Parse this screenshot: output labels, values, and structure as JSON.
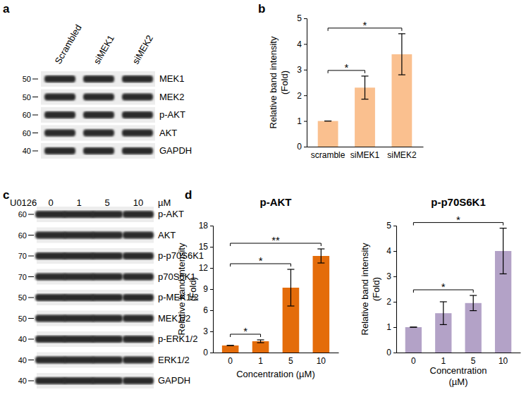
{
  "panels": [
    "a",
    "b",
    "c",
    "d"
  ],
  "blots": [
    {
      "lanes": [
        "Scrambled",
        "siMEK1",
        "siMEK2"
      ],
      "rows": [
        {
          "label": "MEK1",
          "marker": 50
        },
        {
          "label": "MEK2",
          "marker": 50
        },
        {
          "label": "p-AKT",
          "marker": 60
        },
        {
          "label": "AKT",
          "marker": 60
        },
        {
          "label": "GAPDH",
          "marker": 40
        }
      ]
    },
    {
      "treatment": "U0126",
      "lanes": [
        "0",
        "1",
        "5",
        "10"
      ],
      "unit": "µM",
      "rows": [
        {
          "label": "p-AKT",
          "marker": 60
        },
        {
          "label": "AKT",
          "marker": 60
        },
        {
          "label": "p-p70S6K1",
          "marker": 70
        },
        {
          "label": "p70S6K1",
          "marker": 70
        },
        {
          "label": "p-MEK1/2",
          "marker": 50
        },
        {
          "label": "MEK1/2",
          "marker": 50
        },
        {
          "label": "p-ERK1/2",
          "marker": 40
        },
        {
          "label": "ERK1/2",
          "marker": 40
        },
        {
          "label": "GAPDH",
          "marker": 40
        }
      ]
    }
  ],
  "chart_data": [
    {
      "type": "bar",
      "categories": [
        "scramble",
        "siMEK1",
        "siMEK2"
      ],
      "values": [
        1,
        2.3,
        3.6
      ],
      "errors": [
        0,
        0.45,
        0.8
      ],
      "color": "#fac08f",
      "ylim": [
        0,
        5
      ],
      "yticks": [
        0,
        1,
        2,
        3,
        4,
        5
      ],
      "y_label": [
        "Relative band intensity",
        "(Fold)"
      ],
      "significance": [
        {
          "from": 0,
          "to": 1,
          "label": "*"
        },
        {
          "from": 0,
          "to": 2,
          "label": "*"
        }
      ]
    },
    {
      "type": "bar",
      "title": "p-AKT",
      "categories": [
        "0",
        "1",
        "5",
        "10"
      ],
      "values": [
        1,
        1.6,
        9.2,
        13.7
      ],
      "errors": [
        0,
        0.2,
        2.6,
        1.0
      ],
      "color": "#e46c0a",
      "ylim": [
        0,
        18
      ],
      "yticks": [
        0,
        3,
        6,
        9,
        12,
        15,
        18
      ],
      "x_label": [
        "Concentration (µM)"
      ],
      "y_label": [
        "Relative band intensity",
        "(Fold)"
      ],
      "significance": [
        {
          "from": 0,
          "to": 1,
          "label": "*"
        },
        {
          "from": 0,
          "to": 2,
          "label": "*"
        },
        {
          "from": 0,
          "to": 3,
          "label": "**"
        }
      ]
    },
    {
      "type": "bar",
      "title": "p-p70S6K1",
      "categories": [
        "0",
        "1",
        "5",
        "10"
      ],
      "values": [
        1,
        1.55,
        1.95,
        4.0
      ],
      "errors": [
        0,
        0.45,
        0.3,
        0.9
      ],
      "color": "#b3a2c7",
      "ylim": [
        0,
        5
      ],
      "yticks": [
        0,
        1,
        2,
        3,
        4,
        5
      ],
      "x_label": [
        "Concentration",
        "(µM)"
      ],
      "y_label": [
        "Relative band intensity",
        "(Fold)"
      ],
      "significance": [
        {
          "from": 0,
          "to": 2,
          "label": "*"
        },
        {
          "from": 0,
          "to": 3,
          "label": "*"
        }
      ]
    }
  ]
}
